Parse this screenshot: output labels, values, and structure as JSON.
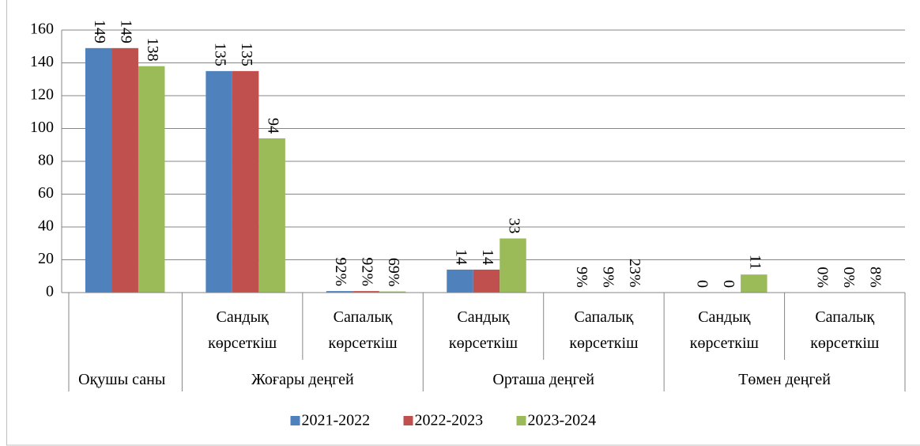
{
  "chart_data": {
    "type": "bar",
    "categories": [
      null,
      "Сандық көрсеткіш",
      "Сапалық көрсеткіш",
      "Сандық көрсеткіш",
      "Сапалық көрсеткіш",
      "Сандық көрсеткіш",
      "Сапалық көрсеткіш"
    ],
    "groups": [
      {
        "label": "Оқушы саны",
        "span": 1
      },
      {
        "label": "Жоғары деңгей",
        "span": 2
      },
      {
        "label": "Орташа деңгей",
        "span": 2
      },
      {
        "label": "Төмен деңгей",
        "span": 2
      }
    ],
    "series": [
      {
        "name": "2021-2022",
        "color": "#4f81bd",
        "values": [
          149,
          135,
          0.92,
          14,
          0.09,
          0,
          0
        ],
        "value_labels": [
          "149",
          "135",
          "92%",
          "14",
          "9%",
          "0",
          "0%"
        ]
      },
      {
        "name": "2022-2023",
        "color": "#c0504d",
        "values": [
          149,
          135,
          0.92,
          14,
          0.09,
          0,
          0
        ],
        "value_labels": [
          "149",
          "135",
          "92%",
          "14",
          "9%",
          "0",
          "0%"
        ]
      },
      {
        "name": "2023-2024",
        "color": "#9bbb59",
        "values": [
          138,
          94,
          0.69,
          33,
          0.23,
          11,
          0.08
        ],
        "value_labels": [
          "138",
          "94",
          "69%",
          "33",
          "23%",
          "11",
          "8%"
        ]
      }
    ],
    "ylim": [
      0,
      160
    ],
    "yticks": [
      0,
      20,
      40,
      60,
      80,
      100,
      120,
      140,
      160
    ],
    "grid": true,
    "legend": "bottom"
  }
}
